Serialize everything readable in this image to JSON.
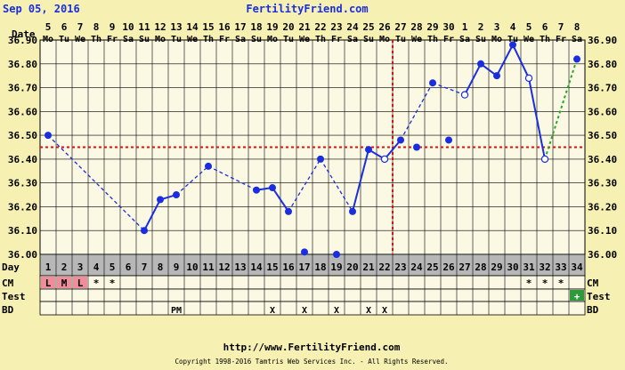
{
  "header": {
    "date": "Sep 05, 2016",
    "site": "FertilityFriend.com"
  },
  "footer": {
    "url": "http://www.FertilityFriend.com",
    "copyright": "Copyright 1998-2016 Tamtris Web Services Inc. - All Rights Reserved."
  },
  "row_labels": {
    "date": "Date",
    "day": "Day",
    "cm": "CM",
    "test": "Test",
    "bd": "BD"
  },
  "colors": {
    "background": "#f6f0b2",
    "plot_background": "#fbf8e3",
    "line": "#1a2ee0",
    "coverline": "#dd1111",
    "projection": "#22aa22",
    "menstruation_cell": "#f08c9b",
    "positive_test_cell": "#2e9a3a"
  },
  "chart_data": {
    "type": "line",
    "title": "",
    "xlabel": "",
    "ylabel": "",
    "ylim": [
      36.0,
      36.9
    ],
    "y_ticks": [
      "36.00",
      "36.10",
      "36.20",
      "36.30",
      "36.40",
      "36.50",
      "36.60",
      "36.70",
      "36.80",
      "36.90"
    ],
    "grid": true,
    "x_date_numbers": [
      "5",
      "6",
      "7",
      "8",
      "9",
      "10",
      "11",
      "12",
      "13",
      "14",
      "15",
      "16",
      "17",
      "18",
      "19",
      "20",
      "21",
      "22",
      "23",
      "24",
      "25",
      "26",
      "27",
      "28",
      "29",
      "30",
      "1",
      "2",
      "3",
      "4",
      "5",
      "6",
      "7",
      "8"
    ],
    "x_weekdays": [
      "Mo",
      "Tu",
      "We",
      "Th",
      "Fr",
      "Sa",
      "Su",
      "Mo",
      "Tu",
      "We",
      "Th",
      "Fr",
      "Sa",
      "Su",
      "Mo",
      "Tu",
      "We",
      "Th",
      "Fr",
      "Sa",
      "Su",
      "Mo",
      "Tu",
      "We",
      "Th",
      "Fr",
      "Sa",
      "Su",
      "Mo",
      "Tu",
      "We",
      "Th",
      "Fr",
      "Sa"
    ],
    "cycle_days": [
      1,
      2,
      3,
      4,
      5,
      6,
      7,
      8,
      9,
      10,
      11,
      12,
      13,
      14,
      15,
      16,
      17,
      18,
      19,
      20,
      21,
      22,
      23,
      24,
      25,
      26,
      27,
      28,
      29,
      30,
      31,
      32,
      33,
      34
    ],
    "temperatures": [
      {
        "day": 1,
        "temp": 36.5,
        "hollow": false
      },
      {
        "day": 7,
        "temp": 36.1,
        "hollow": false
      },
      {
        "day": 8,
        "temp": 36.23,
        "hollow": false
      },
      {
        "day": 9,
        "temp": 36.25,
        "hollow": false
      },
      {
        "day": 11,
        "temp": 36.37,
        "hollow": false
      },
      {
        "day": 14,
        "temp": 36.27,
        "hollow": false
      },
      {
        "day": 15,
        "temp": 36.28,
        "hollow": false
      },
      {
        "day": 16,
        "temp": 36.18,
        "hollow": false
      },
      {
        "day": 17,
        "temp": 36.01,
        "hollow": false
      },
      {
        "day": 18,
        "temp": 36.4,
        "hollow": false
      },
      {
        "day": 19,
        "temp": 36.0,
        "hollow": false
      },
      {
        "day": 20,
        "temp": 36.18,
        "hollow": false
      },
      {
        "day": 21,
        "temp": 36.44,
        "hollow": false
      },
      {
        "day": 22,
        "temp": 36.4,
        "hollow": true
      },
      {
        "day": 23,
        "temp": 36.48,
        "hollow": false
      },
      {
        "day": 24,
        "temp": 36.45,
        "hollow": false
      },
      {
        "day": 25,
        "temp": 36.72,
        "hollow": false
      },
      {
        "day": 26,
        "temp": 36.48,
        "hollow": false
      },
      {
        "day": 27,
        "temp": 36.67,
        "hollow": true
      },
      {
        "day": 28,
        "temp": 36.8,
        "hollow": false
      },
      {
        "day": 29,
        "temp": 36.75,
        "hollow": false
      },
      {
        "day": 30,
        "temp": 36.88,
        "hollow": false
      },
      {
        "day": 31,
        "temp": 36.74,
        "hollow": true
      },
      {
        "day": 32,
        "temp": 36.4,
        "hollow": true
      },
      {
        "day": 34,
        "temp": 36.82,
        "hollow": false
      }
    ],
    "connections": [
      {
        "from": 1,
        "to": 7,
        "style": "dashed"
      },
      {
        "from": 7,
        "to": 8,
        "style": "solid"
      },
      {
        "from": 8,
        "to": 9,
        "style": "solid"
      },
      {
        "from": 9,
        "to": 11,
        "style": "dashed"
      },
      {
        "from": 11,
        "to": 14,
        "style": "dashed"
      },
      {
        "from": 14,
        "to": 15,
        "style": "solid"
      },
      {
        "from": 15,
        "to": 16,
        "style": "solid"
      },
      {
        "from": 16,
        "to": 18,
        "style": "dashed"
      },
      {
        "from": 18,
        "to": 20,
        "style": "dashed"
      },
      {
        "from": 20,
        "to": 21,
        "style": "solid"
      },
      {
        "from": 21,
        "to": 22,
        "style": "solid"
      },
      {
        "from": 22,
        "to": 23,
        "style": "solid"
      },
      {
        "from": 23,
        "to": 25,
        "style": "dashed"
      },
      {
        "from": 25,
        "to": 27,
        "style": "dashed"
      },
      {
        "from": 27,
        "to": 28,
        "style": "solid"
      },
      {
        "from": 28,
        "to": 29,
        "style": "solid"
      },
      {
        "from": 29,
        "to": 30,
        "style": "solid"
      },
      {
        "from": 30,
        "to": 31,
        "style": "solid"
      },
      {
        "from": 31,
        "to": 32,
        "style": "solid"
      },
      {
        "from": 32,
        "to": 34,
        "style": "dotted-green"
      }
    ],
    "coverline": 36.45,
    "ovulation_day": 22,
    "cm_row": [
      {
        "day": 1,
        "value": "L",
        "highlight": true
      },
      {
        "day": 2,
        "value": "M",
        "highlight": true
      },
      {
        "day": 3,
        "value": "L",
        "highlight": true
      },
      {
        "day": 4,
        "value": "*",
        "highlight": false
      },
      {
        "day": 5,
        "value": "*",
        "highlight": false
      },
      {
        "day": 31,
        "value": "*",
        "highlight": false
      },
      {
        "day": 32,
        "value": "*",
        "highlight": false
      },
      {
        "day": 33,
        "value": "*",
        "highlight": false
      }
    ],
    "test_row": [
      {
        "day": 34,
        "value": "+",
        "positive": true
      }
    ],
    "bd_row": [
      {
        "day": 9,
        "value": "PM"
      },
      {
        "day": 15,
        "value": "X"
      },
      {
        "day": 17,
        "value": "X"
      },
      {
        "day": 19,
        "value": "X"
      },
      {
        "day": 21,
        "value": "X"
      },
      {
        "day": 22,
        "value": "X"
      }
    ]
  }
}
